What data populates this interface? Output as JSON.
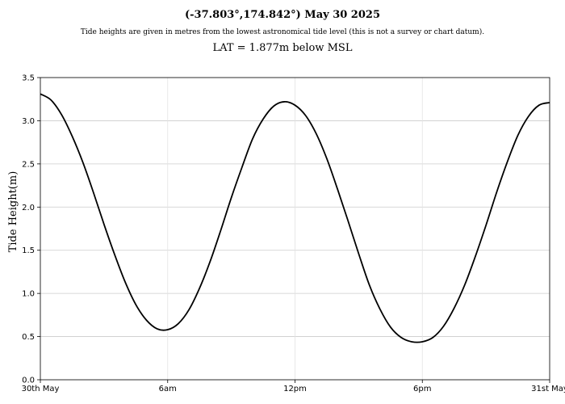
{
  "chart_data": {
    "type": "line",
    "title": "(-37.803°,174.842°) May 30 2025",
    "subtitle": "Tide heights are given in metres from the lowest astronomical tide level (this is not a survey or chart datum).",
    "note": "LAT = 1.877m below MSL",
    "xlabel": "",
    "ylabel": "Tide Height(m)",
    "ylim": [
      0,
      3.5
    ],
    "xlim": [
      0,
      24
    ],
    "grid": true,
    "y_ticks": [
      {
        "value": 0.0,
        "label": "0.0"
      },
      {
        "value": 0.5,
        "label": "0.5"
      },
      {
        "value": 1.0,
        "label": "1.0"
      },
      {
        "value": 1.5,
        "label": "1.5"
      },
      {
        "value": 2.0,
        "label": "2.0"
      },
      {
        "value": 2.5,
        "label": "2.5"
      },
      {
        "value": 3.0,
        "label": "3.0"
      },
      {
        "value": 3.5,
        "label": "3.5"
      }
    ],
    "x_ticks": [
      {
        "value": 0,
        "label": "30th May"
      },
      {
        "value": 6,
        "label": "6am"
      },
      {
        "value": 12,
        "label": "12pm"
      },
      {
        "value": 18,
        "label": "6pm"
      },
      {
        "value": 24,
        "label": "31st May"
      }
    ],
    "series": [
      {
        "color": "#000000",
        "x": [
          0,
          0.5,
          1,
          1.5,
          2,
          2.5,
          3,
          3.5,
          4,
          4.5,
          5,
          5.5,
          6,
          6.5,
          7,
          7.5,
          8,
          8.5,
          9,
          9.5,
          10,
          10.5,
          11,
          11.5,
          12,
          12.5,
          13,
          13.5,
          14,
          14.5,
          15,
          15.5,
          16,
          16.5,
          17,
          17.5,
          18,
          18.5,
          19,
          19.5,
          20,
          20.5,
          21,
          21.5,
          22,
          22.5,
          23,
          23.5,
          24
        ],
        "y": [
          3.31,
          3.24,
          3.07,
          2.82,
          2.52,
          2.17,
          1.8,
          1.45,
          1.13,
          0.87,
          0.69,
          0.59,
          0.58,
          0.65,
          0.81,
          1.06,
          1.37,
          1.73,
          2.11,
          2.46,
          2.79,
          3.02,
          3.17,
          3.22,
          3.18,
          3.06,
          2.85,
          2.56,
          2.21,
          1.84,
          1.46,
          1.1,
          0.82,
          0.61,
          0.49,
          0.44,
          0.44,
          0.49,
          0.62,
          0.83,
          1.1,
          1.43,
          1.79,
          2.17,
          2.52,
          2.83,
          3.05,
          3.18,
          3.21
        ]
      }
    ]
  }
}
